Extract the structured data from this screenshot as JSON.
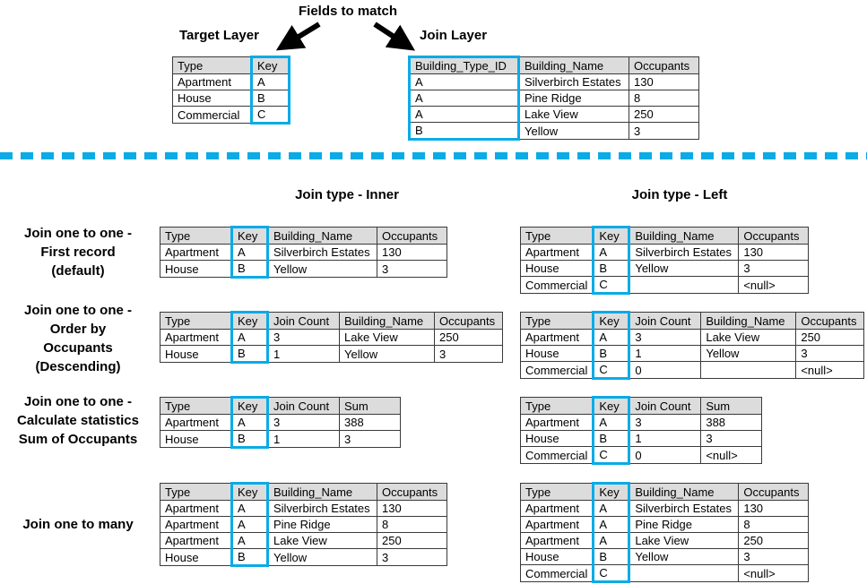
{
  "fields_to_match_label": "Fields to match",
  "colors": {
    "highlight": "#0aabe6",
    "header_fill": "#dcdcdc",
    "table_border": "#3a3a3a"
  },
  "top": {
    "target_layer_heading": "Target Layer",
    "join_layer_heading": "Join Layer",
    "target_table": {
      "headers": [
        "Type",
        "Key"
      ],
      "key_col": 1,
      "rows": [
        [
          "Apartment",
          "A"
        ],
        [
          "House",
          "B"
        ],
        [
          "Commercial",
          "C"
        ]
      ]
    },
    "join_table": {
      "headers": [
        "Building_Type_ID",
        "Building_Name",
        "Occupants"
      ],
      "key_col": 0,
      "rows": [
        [
          "A",
          "Silverbirch Estates",
          "130"
        ],
        [
          "A",
          "Pine Ridge",
          "8"
        ],
        [
          "A",
          "Lake View",
          "250"
        ],
        [
          "B",
          "Yellow",
          "3"
        ]
      ]
    }
  },
  "join_type_headings": {
    "inner": "Join type - Inner",
    "left": "Join type - Left"
  },
  "join_rows": [
    {
      "label_lines": [
        "Join one to one -",
        "First record",
        "(default)"
      ],
      "inner": {
        "headers": [
          "Type",
          "Key",
          "Building_Name",
          "Occupants"
        ],
        "key_col": 1,
        "rows": [
          [
            "Apartment",
            "A",
            "Silverbirch Estates",
            "130"
          ],
          [
            "House",
            "B",
            "Yellow",
            "3"
          ]
        ]
      },
      "left": {
        "headers": [
          "Type",
          "Key",
          "Building_Name",
          "Occupants"
        ],
        "key_col": 1,
        "rows": [
          [
            "Apartment",
            "A",
            "Silverbirch Estates",
            "130"
          ],
          [
            "House",
            "B",
            "Yellow",
            "3"
          ],
          [
            "Commercial",
            "C",
            "",
            "<null>"
          ]
        ]
      }
    },
    {
      "label_lines": [
        "Join one to one -",
        "Order by",
        "Occupants",
        "(Descending)"
      ],
      "inner": {
        "headers": [
          "Type",
          "Key",
          "Join Count",
          "Building_Name",
          "Occupants"
        ],
        "key_col": 1,
        "rows": [
          [
            "Apartment",
            "A",
            "3",
            "Lake View",
            "250"
          ],
          [
            "House",
            "B",
            "1",
            "Yellow",
            "3"
          ]
        ]
      },
      "left": {
        "headers": [
          "Type",
          "Key",
          "Join Count",
          "Building_Name",
          "Occupants"
        ],
        "key_col": 1,
        "rows": [
          [
            "Apartment",
            "A",
            "3",
            "Lake View",
            "250"
          ],
          [
            "House",
            "B",
            "1",
            "Yellow",
            "3"
          ],
          [
            "Commercial",
            "C",
            "0",
            "",
            "<null>"
          ]
        ]
      }
    },
    {
      "label_lines": [
        "Join one to one -",
        "Calculate statistics",
        "Sum of Occupants"
      ],
      "inner": {
        "headers": [
          "Type",
          "Key",
          "Join Count",
          "Sum"
        ],
        "key_col": 1,
        "rows": [
          [
            "Apartment",
            "A",
            "3",
            "388"
          ],
          [
            "House",
            "B",
            "1",
            "3"
          ]
        ]
      },
      "left": {
        "headers": [
          "Type",
          "Key",
          "Join Count",
          "Sum"
        ],
        "key_col": 1,
        "rows": [
          [
            "Apartment",
            "A",
            "3",
            "388"
          ],
          [
            "House",
            "B",
            "1",
            "3"
          ],
          [
            "Commercial",
            "C",
            "0",
            "<null>"
          ]
        ]
      }
    },
    {
      "label_lines": [
        "Join one to many"
      ],
      "inner": {
        "headers": [
          "Type",
          "Key",
          "Building_Name",
          "Occupants"
        ],
        "key_col": 1,
        "rows": [
          [
            "Apartment",
            "A",
            "Silverbirch Estates",
            "130"
          ],
          [
            "Apartment",
            "A",
            "Pine Ridge",
            "8"
          ],
          [
            "Apartment",
            "A",
            "Lake View",
            "250"
          ],
          [
            "House",
            "B",
            "Yellow",
            "3"
          ]
        ]
      },
      "left": {
        "headers": [
          "Type",
          "Key",
          "Building_Name",
          "Occupants"
        ],
        "key_col": 1,
        "rows": [
          [
            "Apartment",
            "A",
            "Silverbirch Estates",
            "130"
          ],
          [
            "Apartment",
            "A",
            "Pine Ridge",
            "8"
          ],
          [
            "Apartment",
            "A",
            "Lake View",
            "250"
          ],
          [
            "House",
            "B",
            "Yellow",
            "3"
          ],
          [
            "Commercial",
            "C",
            "",
            "<null>"
          ]
        ]
      }
    }
  ]
}
